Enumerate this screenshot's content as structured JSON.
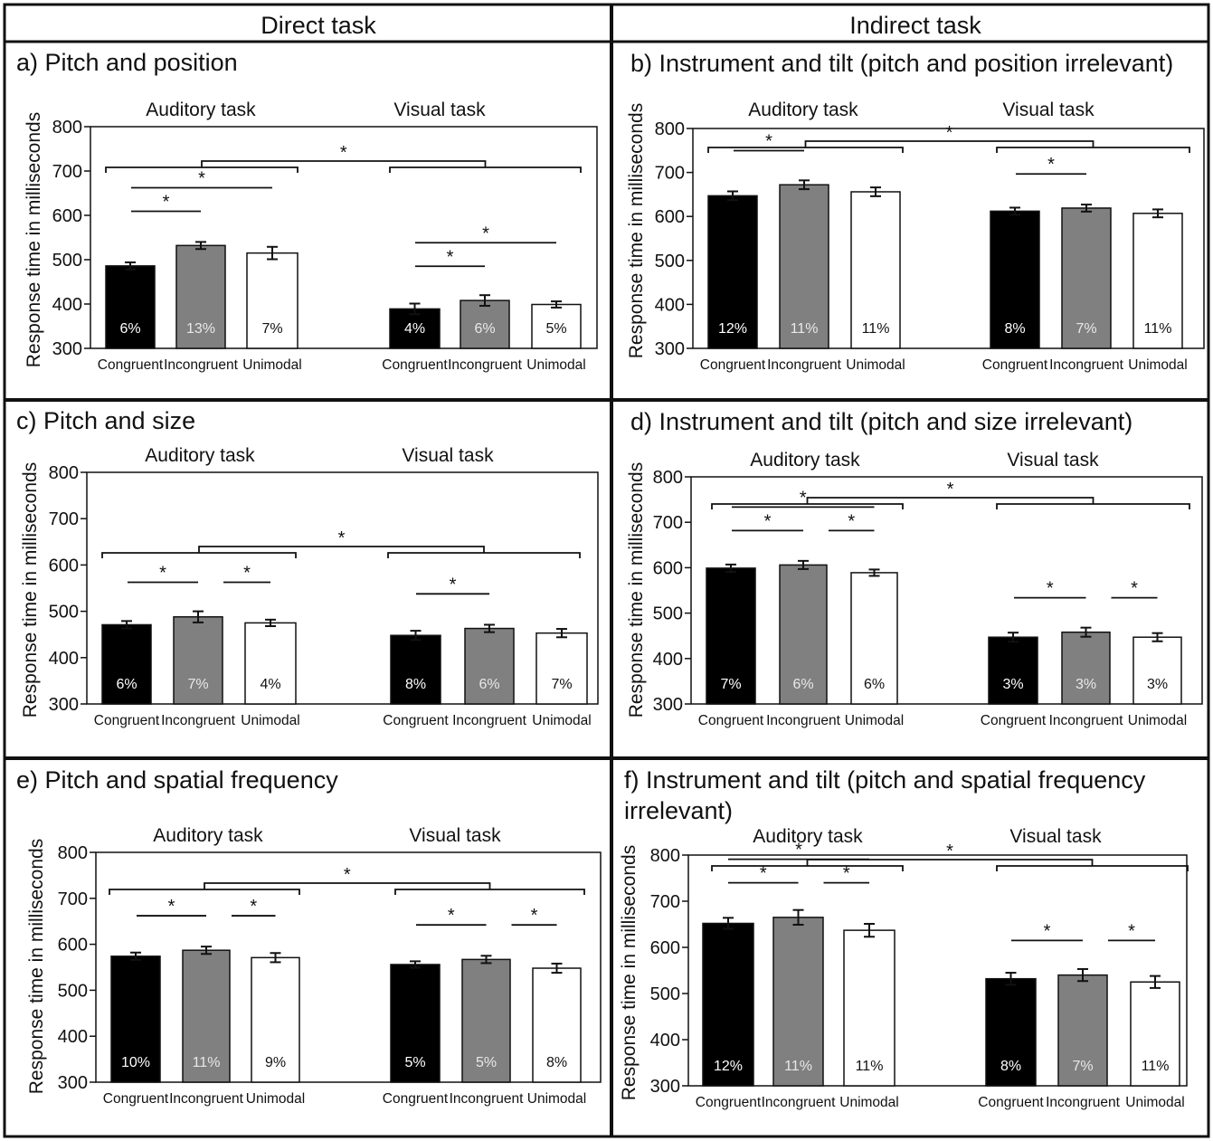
{
  "headers": {
    "direct": "Direct task",
    "indirect": "Indirect task"
  },
  "colors": {
    "congruent": "#000000",
    "incongruent": "#808080",
    "unimodal": "#ffffff",
    "ink": "#111111"
  },
  "chart_data": [
    {
      "id": "a",
      "type": "bar",
      "title": "a) Pitch and position",
      "ylabel": "Response time in milliseconds",
      "ylim": [
        300,
        800
      ],
      "yticks": [
        300,
        400,
        500,
        600,
        700,
        800
      ],
      "categories": [
        "Congruent",
        "Incongruent",
        "Unimodal"
      ],
      "groups": [
        {
          "label": "Auditory task",
          "values": [
            486,
            532,
            515
          ],
          "errors": [
            8,
            8,
            14
          ],
          "error_rates": [
            "6%",
            "13%",
            "7%"
          ]
        },
        {
          "label": "Visual task",
          "values": [
            389,
            408,
            399
          ],
          "errors": [
            12,
            12,
            7
          ],
          "error_rates": [
            "4%",
            "6%",
            "5%"
          ]
        }
      ],
      "significance": [
        "*",
        "*",
        "*",
        "*",
        "*"
      ]
    },
    {
      "id": "b",
      "type": "bar",
      "title": "b) Instrument and tilt (pitch and position irrelevant)",
      "ylabel": "Response time in milliseconds",
      "ylim": [
        300,
        800
      ],
      "yticks": [
        300,
        400,
        500,
        600,
        700,
        800
      ],
      "categories": [
        "Congruent",
        "Incongruent",
        "Unimodal"
      ],
      "groups": [
        {
          "label": "Auditory task",
          "values": [
            647,
            672,
            656
          ],
          "errors": [
            10,
            10,
            10
          ],
          "error_rates": [
            "12%",
            "11%",
            "11%"
          ]
        },
        {
          "label": "Visual task",
          "values": [
            612,
            619,
            607
          ],
          "errors": [
            8,
            8,
            9
          ],
          "error_rates": [
            "8%",
            "7%",
            "11%"
          ]
        }
      ],
      "significance": [
        "*",
        "*",
        "*"
      ]
    },
    {
      "id": "c",
      "type": "bar",
      "title": "c) Pitch and size",
      "ylabel": "Response time in milliseconds",
      "ylim": [
        300,
        800
      ],
      "yticks": [
        300,
        400,
        500,
        600,
        700,
        800
      ],
      "categories": [
        "Congruent",
        "Incongruent",
        "Unimodal"
      ],
      "groups": [
        {
          "label": "Auditory task",
          "values": [
            471,
            488,
            475
          ],
          "errors": [
            8,
            12,
            7
          ],
          "error_rates": [
            "6%",
            "7%",
            "4%"
          ]
        },
        {
          "label": "Visual task",
          "values": [
            448,
            463,
            453
          ],
          "errors": [
            10,
            8,
            9
          ],
          "error_rates": [
            "8%",
            "6%",
            "7%"
          ]
        }
      ],
      "significance": [
        "*",
        "*",
        "*",
        "*"
      ]
    },
    {
      "id": "d",
      "type": "bar",
      "title": "d) Instrument and tilt (pitch and size irrelevant)",
      "ylabel": "Response time in milliseconds",
      "ylim": [
        300,
        800
      ],
      "yticks": [
        300,
        400,
        500,
        600,
        700,
        800
      ],
      "categories": [
        "Congruent",
        "Incongruent",
        "Unimodal"
      ],
      "groups": [
        {
          "label": "Auditory task",
          "values": [
            599,
            606,
            589
          ],
          "errors": [
            8,
            9,
            7
          ],
          "error_rates": [
            "7%",
            "6%",
            "6%"
          ]
        },
        {
          "label": "Visual task",
          "values": [
            447,
            458,
            447
          ],
          "errors": [
            10,
            10,
            9
          ],
          "error_rates": [
            "3%",
            "3%",
            "3%"
          ]
        }
      ],
      "significance": [
        "*",
        "*",
        "*",
        "*",
        "*",
        "*"
      ]
    },
    {
      "id": "e",
      "type": "bar",
      "title": "e) Pitch and spatial frequency",
      "ylabel": "Response time in milliseconds",
      "ylim": [
        300,
        800
      ],
      "yticks": [
        300,
        400,
        500,
        600,
        700,
        800
      ],
      "categories": [
        "Congruent",
        "Incongruent",
        "Unimodal"
      ],
      "groups": [
        {
          "label": "Auditory task",
          "values": [
            574,
            587,
            571
          ],
          "errors": [
            8,
            8,
            10
          ],
          "error_rates": [
            "10%",
            "11%",
            "9%"
          ]
        },
        {
          "label": "Visual task",
          "values": [
            556,
            567,
            548
          ],
          "errors": [
            7,
            8,
            10
          ],
          "error_rates": [
            "5%",
            "5%",
            "8%"
          ]
        }
      ],
      "significance": [
        "*",
        "*",
        "*",
        "*",
        "*"
      ]
    },
    {
      "id": "f",
      "type": "bar",
      "title": "f) Instrument and tilt (pitch and spatial frequency irrelevant)",
      "ylabel": "Response time in milliseconds",
      "ylim": [
        300,
        800
      ],
      "yticks": [
        300,
        400,
        500,
        600,
        700,
        800
      ],
      "categories": [
        "Congruent",
        "Incongruent",
        "Unimodal"
      ],
      "groups": [
        {
          "label": "Auditory task",
          "values": [
            652,
            665,
            637
          ],
          "errors": [
            12,
            16,
            14
          ],
          "error_rates": [
            "12%",
            "11%",
            "11%"
          ]
        },
        {
          "label": "Visual task",
          "values": [
            532,
            540,
            525
          ],
          "errors": [
            13,
            13,
            13
          ],
          "error_rates": [
            "8%",
            "7%",
            "11%"
          ]
        }
      ],
      "significance": [
        "*",
        "*",
        "*",
        "*",
        "*",
        "*"
      ]
    }
  ]
}
